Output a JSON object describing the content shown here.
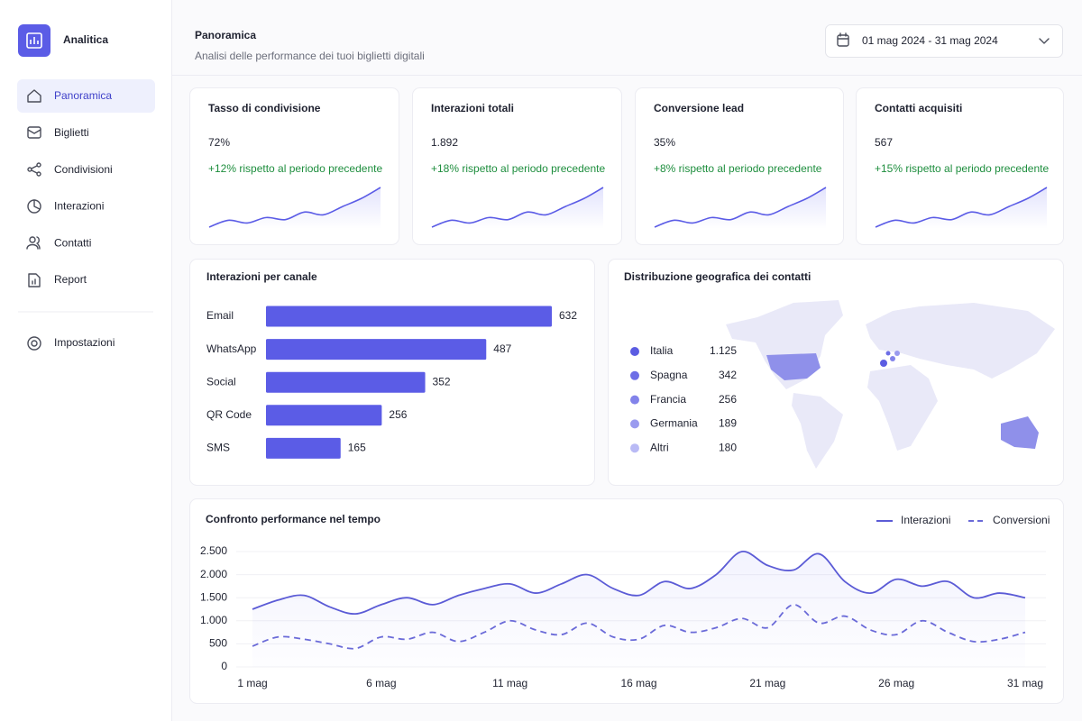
{
  "sidebar": {
    "brand": "Analitica",
    "nav": [
      "Panoramica",
      "Biglietti",
      "Condivisioni",
      "Interazioni",
      "Contatti",
      "Report"
    ],
    "settings": "Impostazioni"
  },
  "header": {
    "title": "Panoramica",
    "subtitle": "Analisi delle performance dei tuoi biglietti digitali",
    "date_range": "01 mag 2024 - 31 mag 2024"
  },
  "kpis": [
    {
      "label": "Tasso di condivisione",
      "value": "72%",
      "change": "+12% rispetto al periodo precedente",
      "sparkline": [
        2,
        3,
        2.6,
        3.4,
        3.1,
        4.2,
        3.8,
        5,
        6.2,
        7.8
      ]
    },
    {
      "label": "Interazioni totali",
      "value": "1.892",
      "change": "+18% rispetto al periodo precedente",
      "sparkline": [
        2,
        3,
        2.6,
        3.4,
        3.1,
        4.2,
        3.8,
        5,
        6.2,
        7.8
      ]
    },
    {
      "label": "Conversione lead",
      "value": "35%",
      "change": "+8% rispetto al periodo precedente",
      "sparkline": [
        2,
        3,
        2.6,
        3.4,
        3.1,
        4.2,
        3.8,
        5,
        6.2,
        7.8
      ]
    },
    {
      "label": "Contatti acquisiti",
      "value": "567",
      "change": "+15% rispetto al periodo precedente",
      "sparkline": [
        2,
        3,
        2.6,
        3.4,
        3.1,
        4.2,
        3.8,
        5,
        6.2,
        7.8
      ]
    }
  ],
  "geo": {
    "title": "Distribuzione geografica dei contatti",
    "items": [
      {
        "name": "Italia",
        "value": "1.125",
        "color": "#5b5ce2"
      },
      {
        "name": "Spagna",
        "value": "342",
        "color": "#6d6ee6"
      },
      {
        "name": "Francia",
        "value": "256",
        "color": "#8283ea"
      },
      {
        "name": "Germania",
        "value": "189",
        "color": "#9a9bef"
      },
      {
        "name": "Altri",
        "value": "180",
        "color": "#b9baf5"
      }
    ]
  },
  "chart_data": [
    {
      "type": "bar",
      "title": "Interazioni per canale",
      "categories": [
        "Email",
        "WhatsApp",
        "Social",
        "QR Code",
        "SMS"
      ],
      "values": [
        632,
        487,
        352,
        256,
        165
      ],
      "color": "#5b5ce6"
    },
    {
      "type": "line",
      "title": "Confronto performance nel tempo",
      "categories": [
        "1 mag",
        null,
        null,
        null,
        null,
        "6 mag",
        null,
        null,
        null,
        null,
        "11 mag",
        null,
        null,
        null,
        null,
        "16 mag",
        null,
        null,
        null,
        null,
        "21 mag",
        null,
        null,
        null,
        null,
        "26 mag",
        null,
        null,
        null,
        null,
        "31 mag"
      ],
      "series": [
        {
          "name": "Interazioni",
          "color": "#5b5bd6",
          "dashed": false,
          "values": [
            1250,
            1450,
            1550,
            1300,
            1150,
            1350,
            1500,
            1350,
            1550,
            1700,
            1800,
            1600,
            1800,
            2000,
            1700,
            1550,
            1850,
            1700,
            2000,
            2500,
            2200,
            2100,
            2450,
            1850,
            1600,
            1900,
            1750,
            1850,
            1500,
            1600,
            1500
          ]
        },
        {
          "name": "Conversioni",
          "color": "#6a6ad8",
          "dashed": true,
          "values": [
            450,
            650,
            600,
            500,
            400,
            650,
            600,
            750,
            550,
            750,
            1000,
            800,
            700,
            950,
            650,
            600,
            900,
            750,
            850,
            1050,
            850,
            1350,
            950,
            1100,
            800,
            700,
            1000,
            750,
            550,
            600,
            750
          ]
        }
      ],
      "ylim": [
        0,
        2500
      ],
      "yticks": [
        0,
        500,
        {
          "value": 1000,
          "label": "1.000"
        },
        {
          "value": 1500,
          "label": "1.500"
        },
        {
          "value": 2000,
          "label": "2.000"
        },
        {
          "value": 2500,
          "label": "2.500"
        }
      ],
      "grid": true,
      "legend": "top-right"
    }
  ]
}
